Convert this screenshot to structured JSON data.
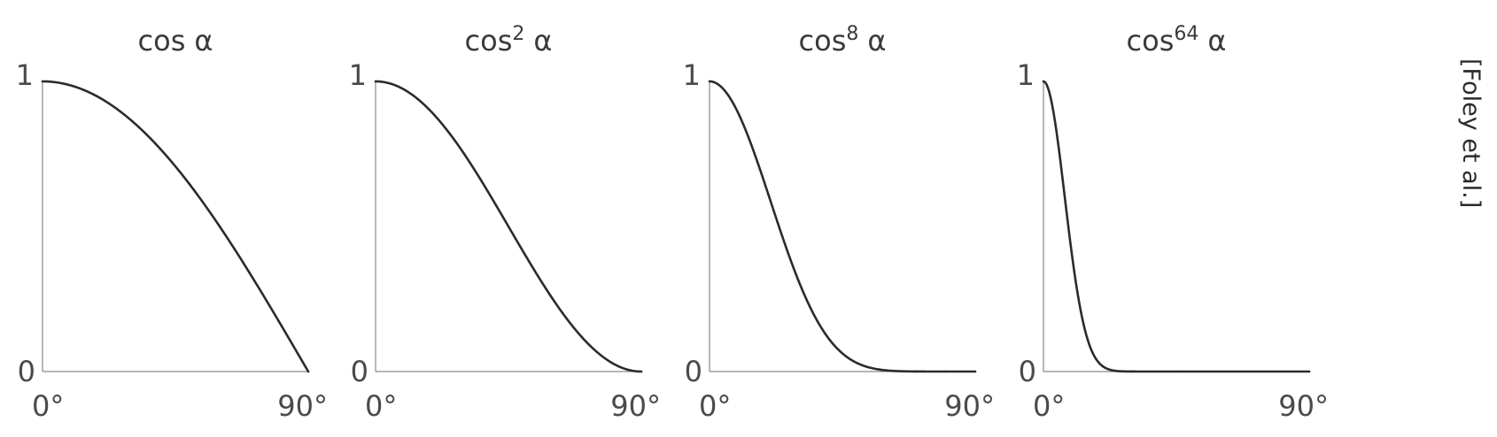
{
  "credit": "[Foley et al.]",
  "colors": {
    "curve": "#2b2b2b",
    "axis": "#8a8a8a",
    "text": "#3a3a3a"
  },
  "chart_data": [
    {
      "type": "line",
      "title_base": "cos",
      "title_exponent": "",
      "title_symbol": "α",
      "exponent": 1,
      "xlim": [
        0,
        90
      ],
      "ylim": [
        0,
        1
      ],
      "xtick_labels": [
        "0°",
        "90°"
      ],
      "ytick_labels": [
        "0",
        "1"
      ],
      "x": [
        0,
        10,
        20,
        30,
        40,
        50,
        60,
        70,
        80,
        90
      ],
      "y": [
        1.0,
        0.985,
        0.94,
        0.866,
        0.766,
        0.643,
        0.5,
        0.342,
        0.174,
        0.0
      ]
    },
    {
      "type": "line",
      "title_base": "cos",
      "title_exponent": "2",
      "title_symbol": "α",
      "exponent": 2,
      "xlim": [
        0,
        90
      ],
      "ylim": [
        0,
        1
      ],
      "xtick_labels": [
        "0°",
        "90°"
      ],
      "ytick_labels": [
        "0",
        "1"
      ],
      "x": [
        0,
        10,
        20,
        30,
        40,
        50,
        60,
        70,
        80,
        90
      ],
      "y": [
        1.0,
        0.97,
        0.883,
        0.75,
        0.587,
        0.413,
        0.25,
        0.117,
        0.03,
        0.0
      ]
    },
    {
      "type": "line",
      "title_base": "cos",
      "title_exponent": "8",
      "title_symbol": "α",
      "exponent": 8,
      "xlim": [
        0,
        90
      ],
      "ylim": [
        0,
        1
      ],
      "xtick_labels": [
        "0°",
        "90°"
      ],
      "ytick_labels": [
        "0",
        "1"
      ],
      "x": [
        0,
        10,
        20,
        30,
        40,
        50,
        60,
        70,
        80,
        90
      ],
      "y": [
        1.0,
        0.886,
        0.608,
        0.316,
        0.119,
        0.029,
        0.004,
        0.0,
        0.0,
        0.0
      ]
    },
    {
      "type": "line",
      "title_base": "cos",
      "title_exponent": "64",
      "title_symbol": "α",
      "exponent": 64,
      "xlim": [
        0,
        90
      ],
      "ylim": [
        0,
        1
      ],
      "xtick_labels": [
        "0°",
        "90°"
      ],
      "ytick_labels": [
        "0",
        "1"
      ],
      "x": [
        0,
        5,
        10,
        15,
        20,
        30,
        45,
        90
      ],
      "y": [
        1.0,
        0.784,
        0.378,
        0.109,
        0.019,
        0.0,
        0.0,
        0.0
      ]
    }
  ]
}
